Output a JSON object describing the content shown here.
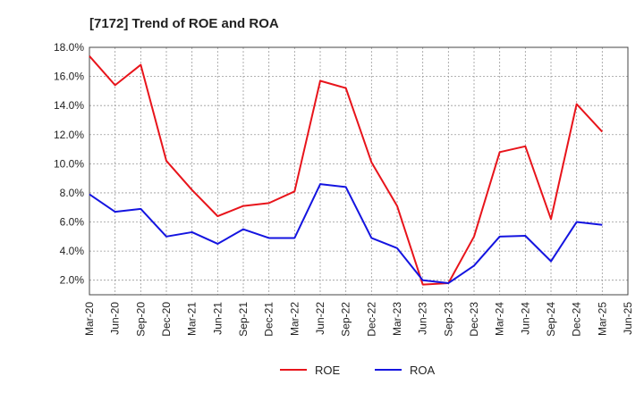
{
  "chart_data": {
    "type": "line",
    "title": "[7172]  Trend of ROE and ROA",
    "xlabel": "",
    "ylabel": "",
    "x": [
      "Mar-20",
      "Jun-20",
      "Sep-20",
      "Dec-20",
      "Mar-21",
      "Jun-21",
      "Sep-21",
      "Dec-21",
      "Mar-22",
      "Jun-22",
      "Sep-22",
      "Dec-22",
      "Mar-23",
      "Jun-23",
      "Sep-23",
      "Dec-23",
      "Mar-24",
      "Jun-24",
      "Sep-24",
      "Dec-24",
      "Mar-25",
      "Jun-25"
    ],
    "ylim": [
      1.0,
      18.0
    ],
    "yticks": [
      2.0,
      4.0,
      6.0,
      8.0,
      10.0,
      12.0,
      14.0,
      16.0,
      18.0
    ],
    "ytick_labels": [
      "2.0%",
      "4.0%",
      "6.0%",
      "8.0%",
      "10.0%",
      "12.0%",
      "14.0%",
      "16.0%",
      "18.0%"
    ],
    "grid": true,
    "legend_position": "bottom-center",
    "series": [
      {
        "name": "ROE",
        "color": "#e8141b",
        "values": [
          17.4,
          15.4,
          16.8,
          10.2,
          8.2,
          6.4,
          7.1,
          7.3,
          8.1,
          15.7,
          15.2,
          10.1,
          7.1,
          1.7,
          1.8,
          5.0,
          10.8,
          11.2,
          6.2,
          14.1,
          12.2,
          null
        ]
      },
      {
        "name": "ROA",
        "color": "#1414e0",
        "values": [
          7.9,
          6.7,
          6.9,
          5.0,
          5.3,
          4.5,
          5.5,
          4.9,
          4.9,
          8.6,
          8.4,
          4.9,
          4.2,
          2.0,
          1.8,
          3.0,
          5.0,
          5.05,
          3.3,
          6.0,
          5.8,
          null
        ]
      }
    ]
  }
}
